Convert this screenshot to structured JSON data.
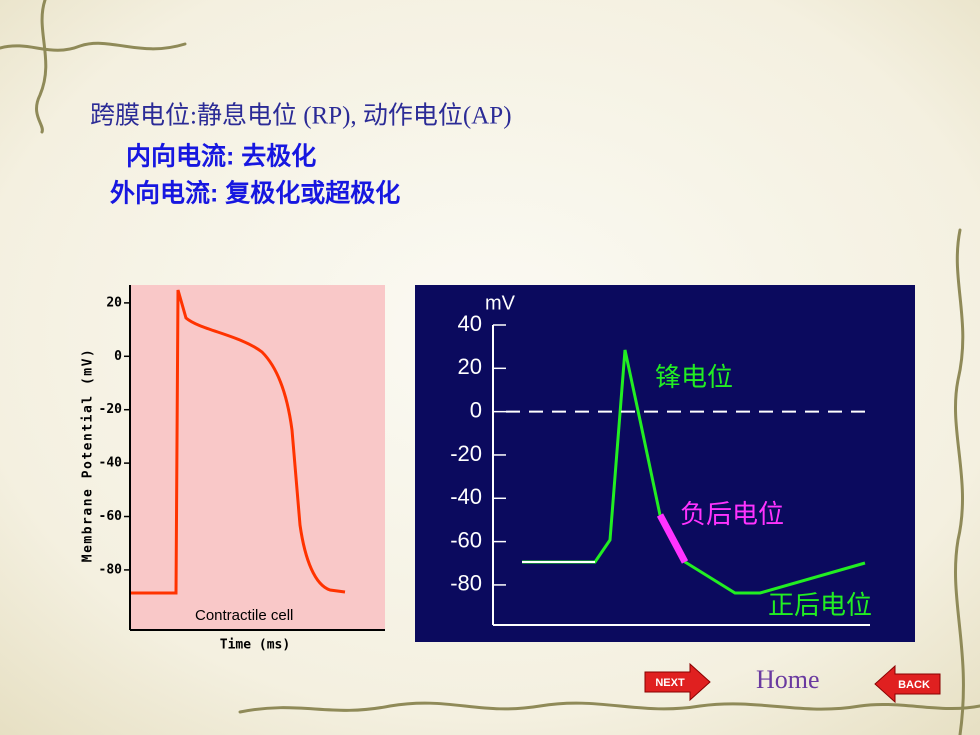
{
  "header": {
    "title": "跨膜电位:静息电位 (RP), 动作电位(AP)",
    "line2": "内向电流: 去极化",
    "line3": "外向电流: 复极化或超极化"
  },
  "charts": [
    {
      "y_label": "Membrane Potential (mV)",
      "x_label": "Time (ms)",
      "caption": "Contractile cell",
      "ylim": [
        -102.5,
        26.7
      ],
      "yticks": [
        20,
        0,
        -20,
        -40,
        -60,
        -80
      ]
    },
    {
      "y_unit": "mV",
      "ylim": [
        -98.5,
        40
      ],
      "yticks": [
        40,
        20,
        0,
        -20,
        -40,
        -60,
        -80
      ],
      "labels": [
        "锋电位",
        "负后电位",
        "正后电位"
      ]
    }
  ],
  "nav": {
    "next": "NEXT",
    "home": "Home",
    "back": "BACK"
  }
}
